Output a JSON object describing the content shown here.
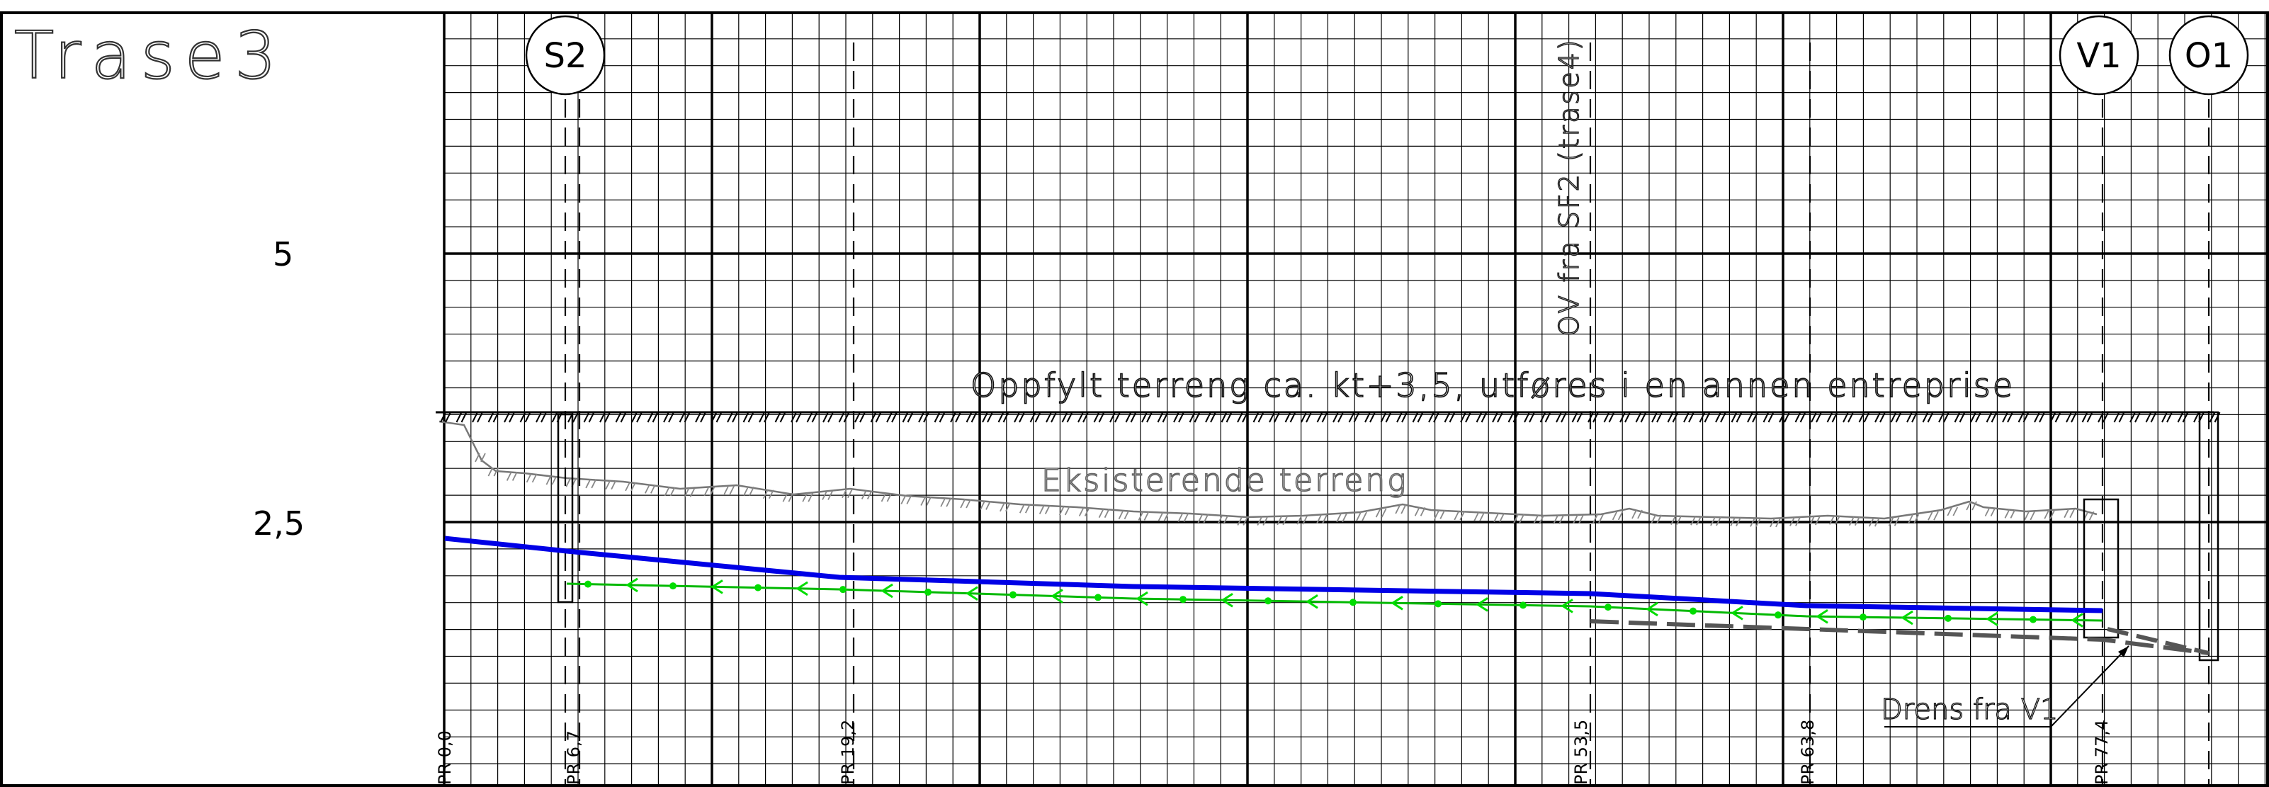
{
  "drawing": {
    "title": "Trase3",
    "elevation_labels": [
      {
        "value": 5,
        "text": "5"
      },
      {
        "value": 2.5,
        "text": "2,5"
      }
    ],
    "annotations": {
      "fill_terrain": "Oppfylt terreng ca. kt+3,5, utføres i en annen entreprise",
      "existing_terrain": "Eksisterende terreng",
      "ov_pipe": "OV fra SF2 (trase4)",
      "drain": "Drens fra V1"
    },
    "manholes": [
      {
        "id": "S2",
        "station": 6.7
      },
      {
        "id": "V1",
        "station": 77.4
      },
      {
        "id": "O1",
        "station": 82.0
      }
    ],
    "stations": [
      {
        "value": 0.0,
        "label": "PR 0,0"
      },
      {
        "value": 6.7,
        "label": "PR 6,7"
      },
      {
        "value": 19.2,
        "label": "PR 19,2"
      },
      {
        "value": 53.5,
        "label": "PR 53,5"
      },
      {
        "value": 63.8,
        "label": "PR 63,8"
      },
      {
        "value": 77.4,
        "label": "PR 77,4"
      }
    ],
    "colors": {
      "pipe_top": "#0000e6",
      "flow": "#00cc00",
      "drain": "#555555",
      "terrain": "#777777",
      "grid": "#000000"
    }
  }
}
